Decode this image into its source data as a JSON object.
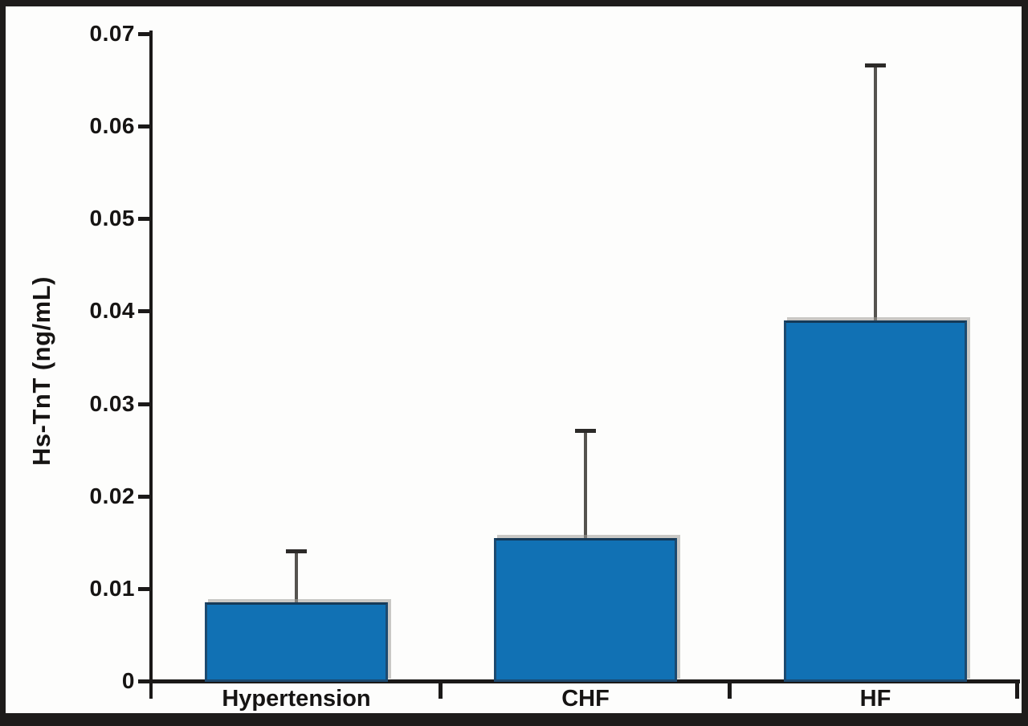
{
  "figure": {
    "background_color": "#fdfdfc",
    "frame_color": "#1e1c1b",
    "axis_color": "#1b1918",
    "text_color": "#161413"
  },
  "chart_data": {
    "type": "bar",
    "title": "",
    "xlabel": "",
    "ylabel": "Hs-TnT (ng/mL)",
    "categories": [
      "Hypertension",
      "CHF",
      "HF"
    ],
    "values": [
      0.0085,
      0.0155,
      0.039
    ],
    "error_upper": [
      0.014,
      0.027,
      0.0665
    ],
    "ylim": [
      0,
      0.07
    ],
    "yticks": [
      0,
      0.01,
      0.02,
      0.03,
      0.04,
      0.05,
      0.06,
      0.07
    ],
    "ytick_labels": [
      "0",
      "0.01",
      "0.02",
      "0.03",
      "0.04",
      "0.05",
      "0.06",
      "0.07"
    ],
    "grid": false,
    "legend": null,
    "bar_color": "#1171b4",
    "bar_border_color": "#1c4a70",
    "error_color": "#55534f"
  }
}
